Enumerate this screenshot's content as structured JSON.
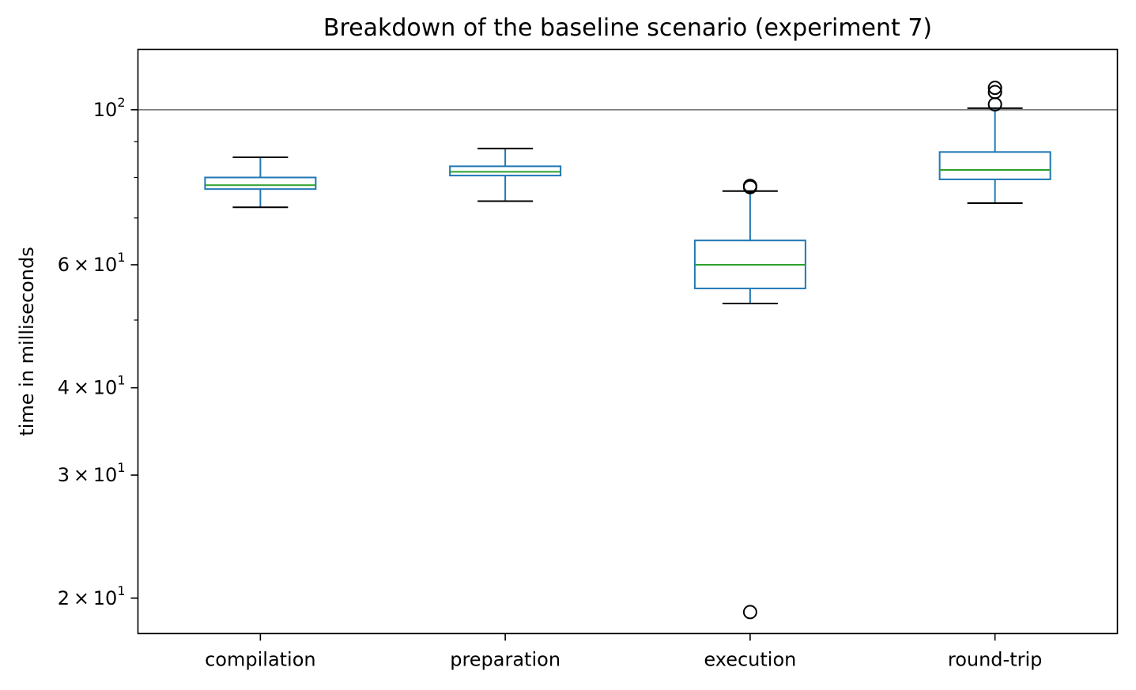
{
  "chart_data": {
    "type": "box",
    "title": "Breakdown of the baseline scenario (experiment 7)",
    "xlabel": "",
    "ylabel": "time in milliseconds",
    "yscale": "log",
    "ylim": [
      17.8,
      122
    ],
    "y_ticks": [
      {
        "value": 20,
        "mantissa": "2",
        "base": "10",
        "exp": "1"
      },
      {
        "value": 30,
        "mantissa": "3",
        "base": "10",
        "exp": "1"
      },
      {
        "value": 40,
        "mantissa": "4",
        "base": "10",
        "exp": "1"
      },
      {
        "value": 60,
        "mantissa": "6",
        "base": "10",
        "exp": "1"
      },
      {
        "value": 100,
        "mantissa": "",
        "base": "10",
        "exp": "2"
      }
    ],
    "y_minor_ticks": [
      50,
      70,
      80,
      90
    ],
    "reference_line": {
      "y": 100,
      "color": "#808080"
    },
    "categories": [
      "compilation",
      "preparation",
      "execution",
      "round-trip"
    ],
    "boxes": [
      {
        "category": "compilation",
        "whisker_low": 72.5,
        "q1": 77.0,
        "median": 78.0,
        "q3": 80.0,
        "whisker_high": 85.5,
        "outliers": []
      },
      {
        "category": "preparation",
        "whisker_low": 74.0,
        "q1": 80.5,
        "median": 81.5,
        "q3": 83.0,
        "whisker_high": 88.0,
        "outliers": []
      },
      {
        "category": "execution",
        "whisker_low": 52.8,
        "q1": 55.5,
        "median": 60.0,
        "q3": 65.0,
        "whisker_high": 76.5,
        "outliers": [
          77.5,
          77.8,
          19.1
        ]
      },
      {
        "category": "round-trip",
        "whisker_low": 73.5,
        "q1": 79.5,
        "median": 82.0,
        "q3": 87.0,
        "whisker_high": 100.5,
        "outliers": [
          101.8,
          106.0,
          107.5
        ]
      }
    ],
    "colors": {
      "box": "#1f77b4",
      "median": "#2ca02c",
      "whisker_cap": "#000000",
      "outlier": "#000000"
    },
    "grid": false,
    "legend": "none"
  }
}
